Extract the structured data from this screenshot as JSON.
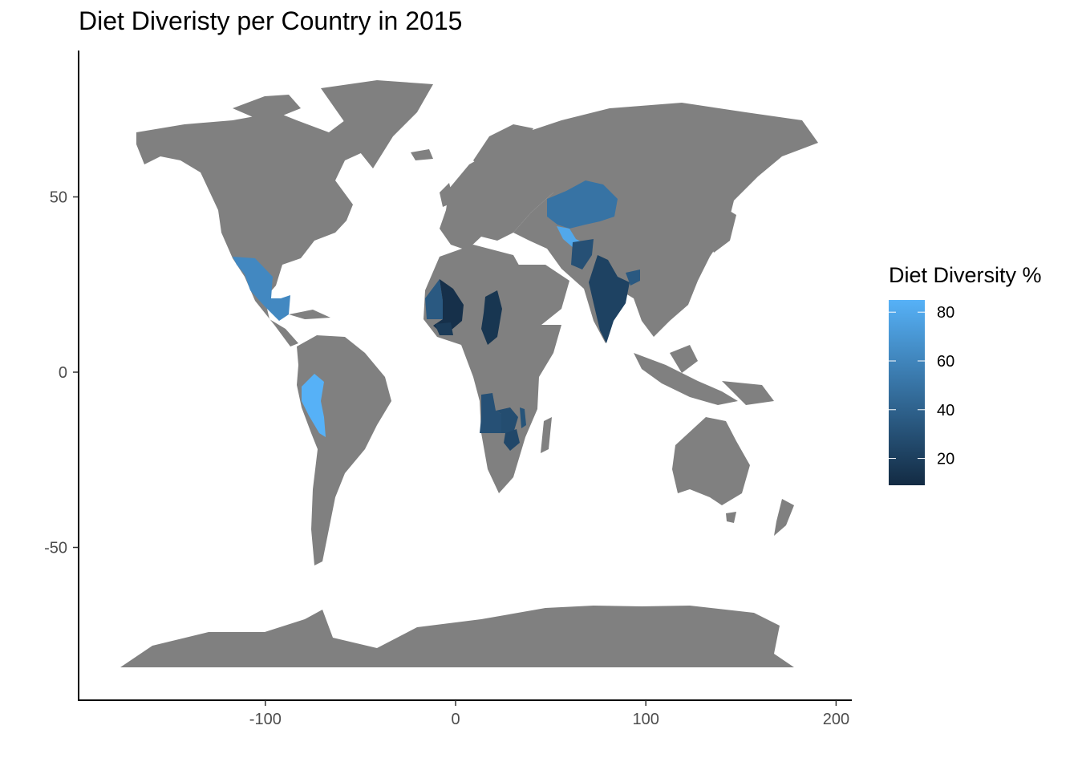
{
  "chart_data": {
    "type": "map",
    "title": "Diet Diveristy per Country in 2015",
    "legend_title": "Diet Diversity %",
    "legend_position": "right",
    "xlim": [
      -190,
      205
    ],
    "ylim": [
      -93,
      92
    ],
    "x_ticks": [
      -100,
      0,
      100,
      200
    ],
    "x_tick_labels": [
      "-100",
      "0",
      "100",
      "200"
    ],
    "y_ticks": [
      50,
      0,
      -50
    ],
    "y_tick_labels": [
      "50",
      "0",
      "-50"
    ],
    "grid": false,
    "base_land_color": "#808080",
    "color_scale": {
      "low": "#132b43",
      "high": "#56b1f7",
      "range": [
        9,
        85
      ],
      "breaks": [
        80,
        60,
        40,
        20
      ],
      "break_labels": [
        "80",
        "60",
        "40",
        "20"
      ]
    },
    "regions": [
      {
        "name": "Mexico",
        "value": 62
      },
      {
        "name": "Peru",
        "value": 85
      },
      {
        "name": "Mauritania",
        "value": 35
      },
      {
        "name": "Mali",
        "value": 12
      },
      {
        "name": "Burkina Faso",
        "value": 18
      },
      {
        "name": "Chad",
        "value": 15
      },
      {
        "name": "Angola",
        "value": 30
      },
      {
        "name": "Zambia",
        "value": 28
      },
      {
        "name": "Malawi",
        "value": 32
      },
      {
        "name": "Zimbabwe",
        "value": 25
      },
      {
        "name": "Kazakhstan",
        "value": 50
      },
      {
        "name": "Uzbekistan",
        "value": 80
      },
      {
        "name": "Afghanistan",
        "value": 30
      },
      {
        "name": "India",
        "value": 22
      },
      {
        "name": "Bangladesh",
        "value": 35
      }
    ]
  }
}
